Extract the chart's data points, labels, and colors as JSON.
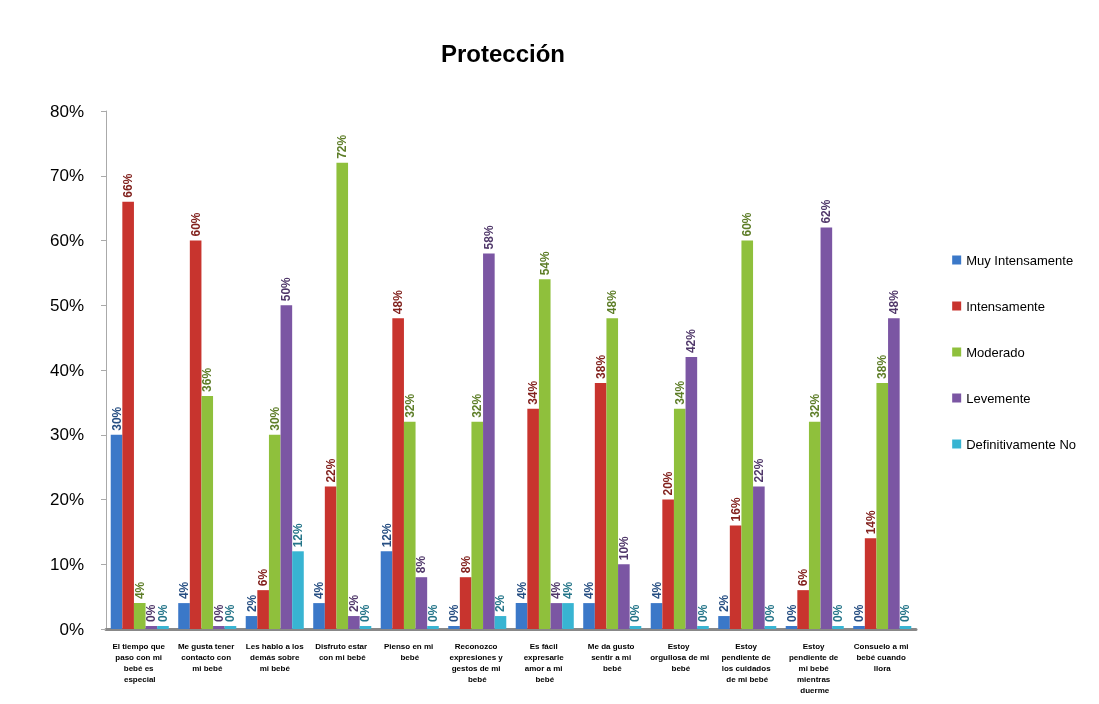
{
  "chart_data": {
    "type": "bar",
    "title": "Protección",
    "categories": [
      "El tiempo que paso con mi bebé es especial",
      "Me gusta tener contacto con mi bebé",
      "Les hablo a los demás sobre mi bebé",
      "Disfruto estar con mi bebé",
      "Pienso en mi bebé",
      "Reconozco expresiones y gestos de mi bebé",
      "Es fácil expresarle amor a mi bebé",
      "Me da gusto sentir a mi bebé",
      "Estoy orgullosa de mi bebé",
      "Estoy pendiente de los cuidados de mi bebé",
      "Estoy pendiente de mi bebé mientras duerme",
      "Consuelo a mi bebé cuando llora"
    ],
    "series": [
      {
        "name": "Muy Intensamente",
        "color": "#3b78c8",
        "values": [
          30,
          4,
          2,
          4,
          12,
          0,
          4,
          4,
          4,
          2,
          0,
          0
        ],
        "value_labels": [
          "30%",
          "4%",
          "2%",
          "4%",
          "12%",
          "0%",
          "4%",
          "4%",
          "4%",
          "2%",
          "0%",
          "0%"
        ]
      },
      {
        "name": "Intensamente",
        "color": "#c8342e",
        "values": [
          66,
          60,
          6,
          22,
          48,
          8,
          34,
          38,
          20,
          16,
          6,
          14
        ],
        "value_labels": [
          "66%",
          "60%",
          "6%",
          "22%",
          "48%",
          "8%",
          "34%",
          "38%",
          "20%",
          "16%",
          "6%",
          "14%"
        ]
      },
      {
        "name": "Moderado",
        "color": "#8fc03c",
        "values": [
          4,
          36,
          30,
          72,
          32,
          32,
          54,
          48,
          34,
          60,
          32,
          38
        ],
        "value_labels": [
          "4%",
          "36%",
          "30%",
          "72%",
          "32%",
          "32%",
          "54%",
          "48%",
          "34%",
          "60%",
          "32%",
          "38%"
        ]
      },
      {
        "name": "Levemente",
        "color": "#7b56a3",
        "values": [
          0,
          0,
          50,
          2,
          8,
          58,
          4,
          10,
          42,
          22,
          62,
          48
        ],
        "value_labels": [
          "0%",
          "0%",
          "50%",
          "2%",
          "8%",
          "58%",
          "4%",
          "10%",
          "42%",
          "22%",
          "62%",
          "48%"
        ]
      },
      {
        "name": "Definitivamente No",
        "color": "#38b4d2",
        "values": [
          0,
          0,
          12,
          0,
          0,
          2,
          4,
          0,
          0,
          0,
          0,
          0
        ],
        "value_labels": [
          "0%",
          "0%",
          "12%",
          "0%",
          "0%",
          "2%",
          "4%",
          "0%",
          "0%",
          "0%",
          "0%",
          "0%"
        ]
      }
    ],
    "ylim": [
      0,
      80
    ],
    "yticks": [
      {
        "value": 0,
        "label": "0%"
      },
      {
        "value": 10,
        "label": "10%"
      },
      {
        "value": 20,
        "label": "20%"
      },
      {
        "value": 30,
        "label": "30%"
      },
      {
        "value": 40,
        "label": "40%"
      },
      {
        "value": 50,
        "label": "50%"
      },
      {
        "value": 60,
        "label": "60%"
      },
      {
        "value": 70,
        "label": "70%"
      },
      {
        "value": 80,
        "label": "80%"
      }
    ],
    "grid": false,
    "legend": "right"
  }
}
